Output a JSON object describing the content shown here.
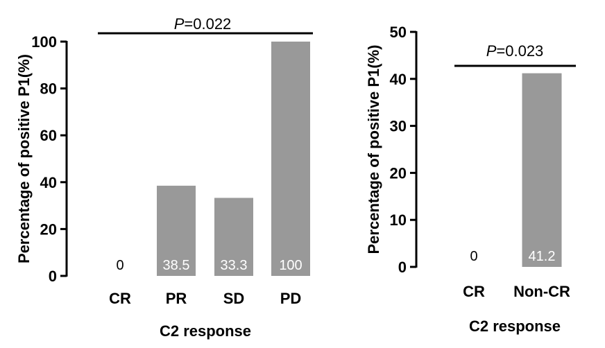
{
  "chart_data": [
    {
      "type": "bar",
      "categories": [
        "CR",
        "PR",
        "SD",
        "PD"
      ],
      "values": [
        0,
        38.5,
        33.3,
        100
      ],
      "data_labels": [
        "0",
        "38.5",
        "33.3",
        "100"
      ],
      "xlabel": "C2 response",
      "ylabel": "Percentage of positive P1(%)",
      "ylim": [
        0,
        100
      ],
      "yticks": [
        "0",
        "20",
        "40",
        "60",
        "80",
        "100"
      ],
      "significance": {
        "p_symbol": "P",
        "p_value": "=0.022"
      },
      "bar_color": "#999999",
      "grid": false
    },
    {
      "type": "bar",
      "categories": [
        "CR",
        "Non-CR"
      ],
      "values": [
        0,
        41.2
      ],
      "data_labels": [
        "0",
        "41.2"
      ],
      "xlabel": "C2 response",
      "ylabel": "Percentage of positive P1(%)",
      "ylim": [
        0,
        50
      ],
      "yticks": [
        "0",
        "10",
        "20",
        "30",
        "40",
        "50"
      ],
      "significance": {
        "p_symbol": "P",
        "p_value": "=0.023"
      },
      "bar_color": "#999999",
      "grid": false
    }
  ]
}
